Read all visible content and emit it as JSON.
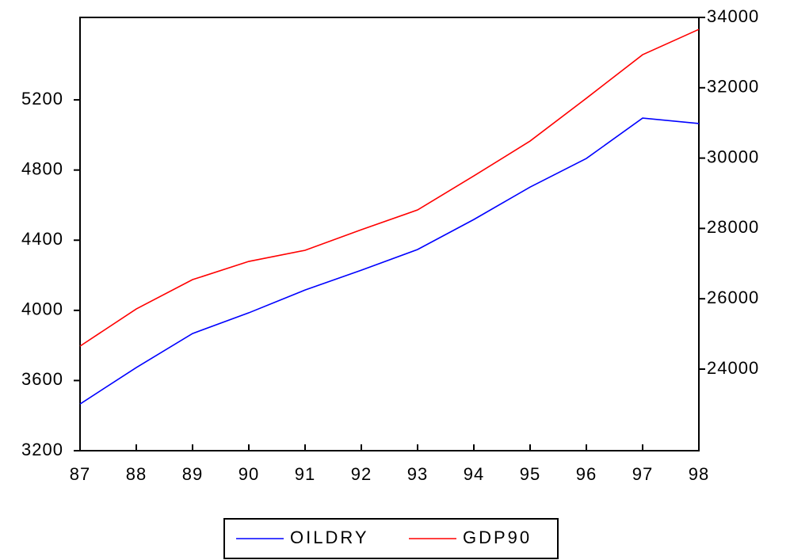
{
  "chart_data": {
    "type": "line",
    "categories": [
      "87",
      "88",
      "89",
      "90",
      "91",
      "92",
      "93",
      "94",
      "95",
      "96",
      "97",
      "98"
    ],
    "series": [
      {
        "name": "OILDRY",
        "color": "#0000ff",
        "axis": "y",
        "values": [
          3466,
          3674,
          3868,
          3986,
          4116,
          4229,
          4347,
          4518,
          4703,
          4866,
          5096,
          5065
        ]
      },
      {
        "name": "GDP90",
        "color": "#ff0000",
        "axis": "y2",
        "values": [
          24653,
          25711,
          26544,
          27062,
          27378,
          27963,
          28526,
          29494,
          30485,
          31701,
          32940,
          33661
        ]
      }
    ],
    "ylim": [
      3200,
      5670
    ],
    "yticks": [
      3200,
      3600,
      4000,
      4400,
      4800,
      5200
    ],
    "y2lim": [
      21680,
      34000
    ],
    "y2ticks": [
      24000,
      26000,
      28000,
      30000,
      32000,
      34000
    ],
    "grid": false,
    "legend": "bottom"
  }
}
